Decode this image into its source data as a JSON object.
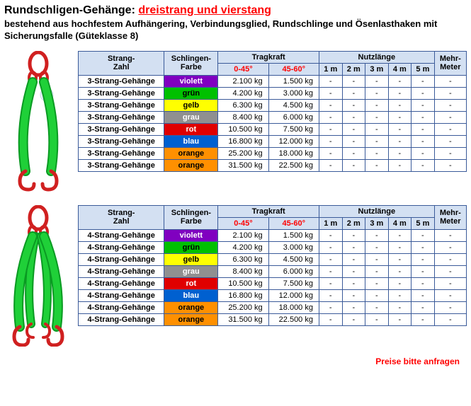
{
  "title_black": "Rundschligen-Gehänge: ",
  "title_red": "dreistrang und vierstang",
  "subtitle": "bestehend aus hochfestem Aufhängering, Verbindungsglied, Rundschlinge und Ösenlasthaken mit Sicherungsfalle (Güteklasse 8)",
  "footer": "Preise bitte anfragen",
  "headers": {
    "strang": "Strang-",
    "zahl": "Zahl",
    "schlingen": "Schlingen-",
    "farbe": "Farbe",
    "tragkraft": "Tragkraft",
    "t1": "0-45°",
    "t2": "45-60°",
    "nutz": "Nutzlänge",
    "n1": "1 m",
    "n2": "2 m",
    "n3": "3 m",
    "n4": "4 m",
    "n5": "5 m",
    "mehr": "Mehr-",
    "meter": "Meter"
  },
  "colors": [
    {
      "name": "violett",
      "bg": "#8000c0",
      "fg": "#ffffff"
    },
    {
      "name": "grün",
      "bg": "#00c000",
      "fg": "#000000"
    },
    {
      "name": "gelb",
      "bg": "#ffff00",
      "fg": "#000000"
    },
    {
      "name": "grau",
      "bg": "#909090",
      "fg": "#ffffff"
    },
    {
      "name": "rot",
      "bg": "#e00000",
      "fg": "#ffffff"
    },
    {
      "name": "blau",
      "bg": "#0060d0",
      "fg": "#ffffff"
    },
    {
      "name": "orange",
      "bg": "#ff9000",
      "fg": "#000000"
    },
    {
      "name": "orange",
      "bg": "#ff9000",
      "fg": "#000000"
    }
  ],
  "loads": [
    {
      "a": "2.100 kg",
      "b": "1.500 kg"
    },
    {
      "a": "4.200 kg",
      "b": "3.000 kg"
    },
    {
      "a": "6.300 kg",
      "b": "4.500 kg"
    },
    {
      "a": "8.400 kg",
      "b": "6.000 kg"
    },
    {
      "a": "10.500 kg",
      "b": "7.500 kg"
    },
    {
      "a": "16.800 kg",
      "b": "12.000 kg"
    },
    {
      "a": "25.200 kg",
      "b": "18.000 kg"
    },
    {
      "a": "31.500 kg",
      "b": "22.500 kg"
    }
  ],
  "labels": {
    "table1_row": "3-Strang-Gehänge",
    "table2_row": "4-Strang-Gehänge"
  },
  "sling_image": {
    "ring_color": "#d02020",
    "strap_color": "#1fd038",
    "strap_shadow": "#0a9a22",
    "hook_color": "#d02020",
    "ball_color": "#e8f4ff"
  }
}
